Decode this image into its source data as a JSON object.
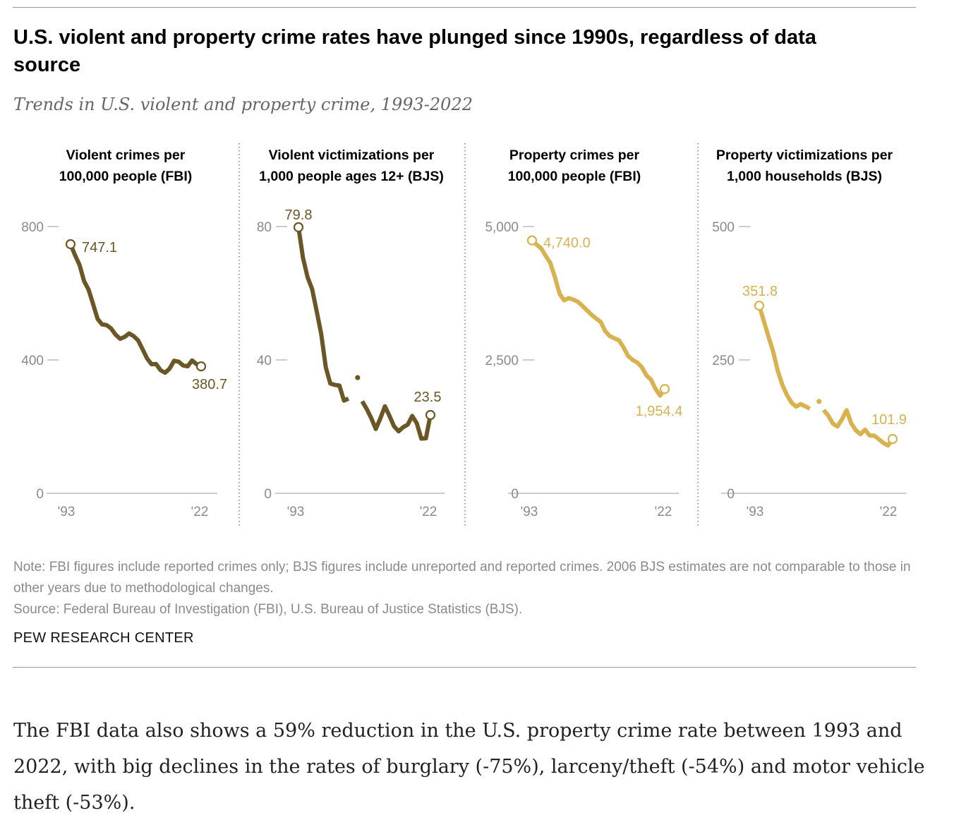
{
  "title": "U.S. violent and property crime rates have plunged since 1990s, regardless of data source",
  "subtitle": "Trends in U.S. violent and property crime, 1993-2022",
  "colors": {
    "violent": "#6b5626",
    "property": "#d8b24f",
    "axis": "#999999",
    "tick_text": "#8a8a8a",
    "divider": "#777777"
  },
  "chart_data": [
    {
      "type": "line",
      "title_lines": [
        "Violent crimes per",
        "100,000 people (FBI)"
      ],
      "color_key": "violent",
      "ylim": [
        0,
        800
      ],
      "yticks": [
        0,
        400,
        800
      ],
      "ytick_labels": [
        "0",
        "400",
        "800"
      ],
      "xticks": [
        "'93",
        "'22"
      ],
      "x": [
        1993,
        1994,
        1995,
        1996,
        1997,
        1998,
        1999,
        2000,
        2001,
        2002,
        2003,
        2004,
        2005,
        2006,
        2007,
        2008,
        2009,
        2010,
        2011,
        2012,
        2013,
        2014,
        2015,
        2016,
        2017,
        2018,
        2019,
        2020,
        2021,
        2022
      ],
      "values": [
        747.1,
        713.6,
        684.5,
        636.6,
        611.0,
        567.6,
        523.0,
        506.5,
        504.5,
        494.4,
        475.8,
        463.2,
        469.0,
        479.3,
        471.8,
        458.6,
        431.9,
        404.5,
        387.1,
        387.8,
        369.1,
        361.6,
        373.7,
        397.5,
        394.9,
        383.4,
        380.8,
        398.5,
        387.0,
        380.7
      ],
      "start_label": "747.1",
      "end_label": "380.7"
    },
    {
      "type": "line",
      "title_lines": [
        "Violent victimizations per",
        "1,000 people ages 12+ (BJS)"
      ],
      "color_key": "violent",
      "ylim": [
        0,
        80
      ],
      "yticks": [
        0,
        40,
        80
      ],
      "ytick_labels": [
        "0",
        "40",
        "80"
      ],
      "xticks": [
        "'93",
        "'22"
      ],
      "x": [
        1993,
        1994,
        1995,
        1996,
        1997,
        1998,
        1999,
        2000,
        2001,
        2002,
        2003,
        2004,
        2005,
        2006,
        2007,
        2008,
        2009,
        2010,
        2011,
        2012,
        2013,
        2014,
        2015,
        2016,
        2017,
        2018,
        2019,
        2020,
        2021,
        2022
      ],
      "values": [
        79.8,
        70.6,
        64.8,
        61.3,
        54.6,
        47.8,
        37.8,
        32.9,
        32.5,
        32.3,
        27.8,
        28.4,
        null,
        34.7,
        27.6,
        25.3,
        22.5,
        19.3,
        22.5,
        26.1,
        23.2,
        20.1,
        18.6,
        19.8,
        20.6,
        23.2,
        21.0,
        16.4,
        16.5,
        23.5
      ],
      "isolated": [
        {
          "x": 2006,
          "y": 34.7
        }
      ],
      "start_label": "79.8",
      "end_label": "23.5"
    },
    {
      "type": "line",
      "title_lines": [
        "Property crimes per",
        "100,000 people (FBI)"
      ],
      "color_key": "property",
      "ylim": [
        0,
        5000
      ],
      "yticks": [
        0,
        2500,
        5000
      ],
      "ytick_labels": [
        "0",
        "2,500",
        "5,000"
      ],
      "xticks": [
        "'93",
        "'22"
      ],
      "x": [
        1993,
        1994,
        1995,
        1996,
        1997,
        1998,
        1999,
        2000,
        2001,
        2002,
        2003,
        2004,
        2005,
        2006,
        2007,
        2008,
        2009,
        2010,
        2011,
        2012,
        2013,
        2014,
        2015,
        2016,
        2017,
        2018,
        2019,
        2020,
        2021,
        2022
      ],
      "values": [
        4740.0,
        4660.2,
        4590.5,
        4451.0,
        4316.3,
        4052.5,
        3743.6,
        3618.3,
        3658.1,
        3630.6,
        3591.2,
        3514.1,
        3431.5,
        3346.6,
        3276.4,
        3214.6,
        3041.3,
        2945.9,
        2905.4,
        2868.0,
        2733.6,
        2574.1,
        2500.5,
        2451.6,
        2362.2,
        2209.8,
        2130.6,
        1958.2,
        1832.3,
        1954.4
      ],
      "start_label": "4,740.0",
      "end_label": "1,954.4"
    },
    {
      "type": "line",
      "title_lines": [
        "Property victimizations per",
        "1,000 households (BJS)"
      ],
      "color_key": "property",
      "ylim": [
        0,
        500
      ],
      "yticks": [
        0,
        250,
        500
      ],
      "ytick_labels": [
        "0",
        "250",
        "500"
      ],
      "xticks": [
        "'93",
        "'22"
      ],
      "x": [
        1993,
        1994,
        1995,
        1996,
        1997,
        1998,
        1999,
        2000,
        2001,
        2002,
        2003,
        2004,
        2005,
        2006,
        2007,
        2008,
        2009,
        2010,
        2011,
        2012,
        2013,
        2014,
        2015,
        2016,
        2017,
        2018,
        2019,
        2020,
        2021,
        2022
      ],
      "values": [
        351.8,
        322.8,
        294.1,
        266.3,
        230.2,
        203.8,
        184.7,
        170.3,
        162.4,
        167.2,
        163.2,
        158.6,
        null,
        172.1,
        156.0,
        145.8,
        130.7,
        125.3,
        138.7,
        155.8,
        131.4,
        118.1,
        110.7,
        119.4,
        108.2,
        108.2,
        101.4,
        94.5,
        89.6,
        101.9
      ],
      "isolated": [
        {
          "x": 2006,
          "y": 172.1
        }
      ],
      "start_label": "351.8",
      "end_label": "101.9"
    }
  ],
  "note": "Note: FBI figures include reported crimes only; BJS figures include unreported and reported crimes. 2006 BJS estimates are not comparable to those in other years due to methodological changes.",
  "source": "Source: Federal Bureau of Investigation (FBI), U.S. Bureau of Justice Statistics (BJS).",
  "brand": "PEW RESEARCH CENTER",
  "body_text": "The FBI data also shows a 59% reduction in the U.S. property crime rate between 1993 and 2022, with big declines in the rates of burglary (-75%), larceny/theft (-54%) and motor vehicle theft (-53%)."
}
